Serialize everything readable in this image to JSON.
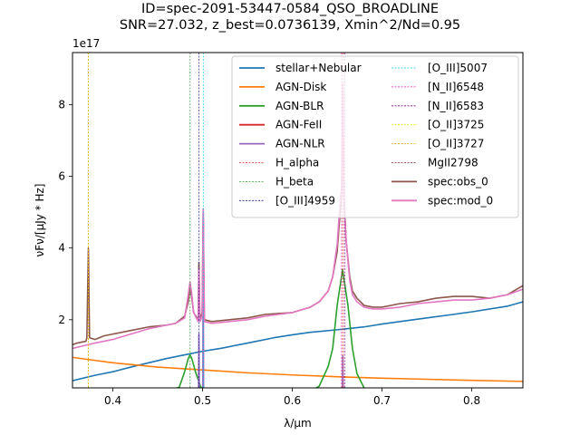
{
  "chart_data": {
    "type": "line",
    "title_lines": [
      "ID=spec-2091-53447-0584_QSO_BROADLINE",
      "SNR=27.032, z_best=0.0736139, Xmin^2/Nd=0.95"
    ],
    "xlabel": "λ/μm",
    "ylabel": "νFν/[μJy * Hz]",
    "y_offset_text": "1e17",
    "xlim": [
      0.355,
      0.857
    ],
    "ylim": [
      0.1,
      9.45
    ],
    "y_unit_multiplier": 1e+17,
    "xticks": [
      0.4,
      0.5,
      0.6,
      0.7,
      0.8
    ],
    "xtick_labels": [
      "0.4",
      "0.5",
      "0.6",
      "0.7",
      "0.8"
    ],
    "yticks": [
      2,
      4,
      6,
      8
    ],
    "ytick_labels": [
      "2",
      "4",
      "6",
      "8"
    ],
    "legend_position": "upper-right, two columns",
    "series": [
      {
        "name": "stellar+Nebular",
        "color": "#1f77b4",
        "style": "solid",
        "x": [
          0.355,
          0.38,
          0.4,
          0.42,
          0.44,
          0.46,
          0.48,
          0.5,
          0.52,
          0.55,
          0.58,
          0.6,
          0.62,
          0.65,
          0.68,
          0.7,
          0.72,
          0.75,
          0.78,
          0.8,
          0.82,
          0.84,
          0.85,
          0.857
        ],
        "y": [
          0.3,
          0.45,
          0.55,
          0.68,
          0.8,
          0.92,
          1.02,
          1.12,
          1.2,
          1.35,
          1.5,
          1.58,
          1.65,
          1.72,
          1.8,
          1.88,
          1.95,
          2.05,
          2.15,
          2.22,
          2.3,
          2.38,
          2.45,
          2.5
        ]
      },
      {
        "name": "AGN-Disk",
        "color": "#ff7f0e",
        "style": "solid",
        "x": [
          0.355,
          0.4,
          0.45,
          0.5,
          0.55,
          0.6,
          0.65,
          0.7,
          0.75,
          0.8,
          0.857
        ],
        "y": [
          0.95,
          0.8,
          0.68,
          0.6,
          0.52,
          0.46,
          0.41,
          0.37,
          0.34,
          0.31,
          0.28
        ]
      },
      {
        "name": "AGN-BLR",
        "color": "#2ca02c",
        "style": "solid",
        "x": [
          0.355,
          0.46,
          0.474,
          0.48,
          0.484,
          0.486,
          0.488,
          0.492,
          0.498,
          0.51,
          0.62,
          0.63,
          0.64,
          0.645,
          0.65,
          0.656,
          0.662,
          0.667,
          0.672,
          0.68,
          0.69,
          0.857
        ],
        "y": [
          0.0,
          0.0,
          0.12,
          0.55,
          0.92,
          1.02,
          0.92,
          0.55,
          0.12,
          0.0,
          0.0,
          0.15,
          0.7,
          1.2,
          2.4,
          3.4,
          2.4,
          1.2,
          0.5,
          0.1,
          0.0,
          0.0
        ]
      },
      {
        "name": "AGN-FeII",
        "color": "#d62728",
        "style": "solid",
        "x": [
          0.355,
          0.857
        ],
        "y": [
          0.0,
          0.0
        ]
      },
      {
        "name": "AGN-NLR",
        "color": "#9467bd",
        "style": "solid",
        "x": [
          0.355,
          0.49,
          0.4955,
          0.4959,
          0.4963,
          0.499,
          0.5003,
          0.5007,
          0.5011,
          0.503,
          0.655,
          0.656,
          0.6563,
          0.6566,
          0.657,
          0.857
        ],
        "y": [
          0.0,
          0.0,
          0.1,
          1.6,
          0.1,
          0.0,
          0.1,
          5.0,
          0.1,
          0.0,
          0.0,
          0.1,
          1.0,
          0.1,
          0.0,
          0.0
        ]
      },
      {
        "name": "spec:obs_0",
        "color": "#8c564b",
        "style": "solid",
        "x": [
          0.355,
          0.36,
          0.37,
          0.371,
          0.3727,
          0.374,
          0.38,
          0.39,
          0.4,
          0.42,
          0.44,
          0.46,
          0.47,
          0.48,
          0.484,
          0.486,
          0.488,
          0.49,
          0.495,
          0.4959,
          0.497,
          0.4995,
          0.5007,
          0.502,
          0.51,
          0.53,
          0.55,
          0.57,
          0.6,
          0.62,
          0.63,
          0.64,
          0.645,
          0.65,
          0.653,
          0.655,
          0.6563,
          0.6575,
          0.66,
          0.664,
          0.667,
          0.672,
          0.68,
          0.69,
          0.7,
          0.71,
          0.72,
          0.74,
          0.76,
          0.78,
          0.8,
          0.82,
          0.84,
          0.85,
          0.857
        ],
        "y": [
          1.3,
          1.35,
          1.4,
          1.5,
          4.0,
          1.5,
          1.45,
          1.55,
          1.6,
          1.7,
          1.8,
          1.85,
          1.9,
          2.1,
          2.5,
          2.9,
          2.6,
          2.2,
          2.0,
          3.6,
          2.0,
          2.2,
          5.0,
          2.0,
          1.95,
          2.0,
          2.05,
          2.15,
          2.2,
          2.35,
          2.5,
          2.8,
          3.2,
          3.9,
          4.9,
          5.6,
          8.5,
          5.4,
          4.2,
          3.2,
          2.8,
          2.6,
          2.4,
          2.35,
          2.35,
          2.4,
          2.45,
          2.5,
          2.6,
          2.65,
          2.65,
          2.6,
          2.7,
          2.85,
          2.95
        ]
      },
      {
        "name": "spec:mod_0",
        "color": "#e377c2",
        "style": "solid",
        "x": [
          0.355,
          0.38,
          0.4,
          0.42,
          0.44,
          0.46,
          0.47,
          0.48,
          0.484,
          0.486,
          0.488,
          0.49,
          0.495,
          0.4959,
          0.497,
          0.4995,
          0.5007,
          0.502,
          0.51,
          0.53,
          0.55,
          0.57,
          0.6,
          0.62,
          0.63,
          0.64,
          0.645,
          0.65,
          0.653,
          0.655,
          0.6563,
          0.6575,
          0.66,
          0.664,
          0.667,
          0.672,
          0.68,
          0.69,
          0.7,
          0.72,
          0.74,
          0.76,
          0.78,
          0.8,
          0.82,
          0.84,
          0.857
        ],
        "y": [
          1.2,
          1.35,
          1.45,
          1.6,
          1.75,
          1.85,
          1.9,
          2.05,
          2.7,
          3.05,
          2.7,
          2.2,
          1.95,
          3.4,
          1.95,
          2.1,
          5.1,
          1.95,
          1.9,
          1.95,
          2.0,
          2.1,
          2.2,
          2.35,
          2.5,
          2.8,
          3.2,
          4.1,
          5.2,
          5.7,
          8.6,
          5.5,
          4.2,
          3.1,
          2.7,
          2.5,
          2.35,
          2.3,
          2.3,
          2.35,
          2.45,
          2.5,
          2.55,
          2.55,
          2.6,
          2.7,
          2.85
        ]
      }
    ],
    "emission_lines": [
      {
        "name": "H_alpha",
        "x": 0.6563,
        "color": "#d62728"
      },
      {
        "name": "H_beta",
        "x": 0.4861,
        "color": "#2ca02c"
      },
      {
        "name": "[O_III]4959",
        "x": 0.4959,
        "color": "#1f1f8f"
      },
      {
        "name": "[O_III]5007",
        "x": 0.5007,
        "color": "#00d0e0"
      },
      {
        "name": "[N_II]6548",
        "x": 0.6548,
        "color": "#e020a0"
      },
      {
        "name": "[N_II]6583",
        "x": 0.6583,
        "color": "#800080"
      },
      {
        "name": "[O_II]3725",
        "x": 0.3725,
        "color": "#e8e800"
      },
      {
        "name": "[O_II]3727",
        "x": 0.3727,
        "color": "#e8a800"
      },
      {
        "name": "MgII2798",
        "x": 0.2798,
        "color": "#8b2020"
      }
    ],
    "legend": {
      "columns": [
        [
          "stellar+Nebular",
          "AGN-Disk",
          "AGN-BLR",
          "AGN-FeII",
          "AGN-NLR",
          "H_alpha",
          "H_beta",
          "[O_III]4959"
        ],
        [
          "[O_III]5007",
          "[N_II]6548",
          "[N_II]6583",
          "[O_II]3725",
          "[O_II]3727",
          "MgII2798",
          "spec:obs_0",
          "spec:mod_0"
        ]
      ]
    }
  }
}
